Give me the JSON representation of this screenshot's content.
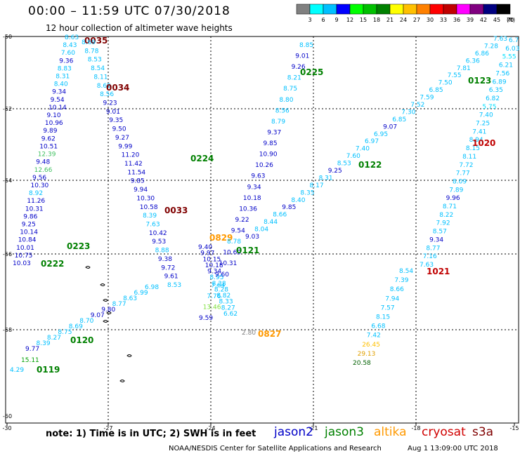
{
  "header": {
    "title": "00:00 – 11:59 UTC 07/30/2018",
    "subtitle": "12 hour collection of altimeter wave heights"
  },
  "colorbar": {
    "colors": [
      "#808080",
      "#00ffff",
      "#00c0ff",
      "#0000ff",
      "#00ff00",
      "#00c000",
      "#008000",
      "#ffff00",
      "#ffc000",
      "#ff8000",
      "#ff0000",
      "#c00000",
      "#ff00ff",
      "#800080",
      "#000080",
      "#000000"
    ],
    "labels": [
      "3",
      "6",
      "9",
      "12",
      "15",
      "18",
      "21",
      "24",
      "27",
      "30",
      "33",
      "36",
      "39",
      "42",
      "45",
      "70"
    ],
    "unit": "(ft)"
  },
  "axes": {
    "lon_labels": [
      "-30",
      "-27",
      "-24",
      "-21",
      "-18",
      "-15"
    ],
    "lat_labels": [
      "-50",
      "-52",
      "-54",
      "-56",
      "-58",
      "-60"
    ]
  },
  "footer": {
    "note": "note:  1) Time is in UTC;  2) SWH is in feet",
    "satellites": [
      {
        "name": "jason2",
        "color": "#0000c8"
      },
      {
        "name": "jason3",
        "color": "#008000"
      },
      {
        "name": "altika",
        "color": "#ff9900"
      },
      {
        "name": "cryosat",
        "color": "#d00000"
      },
      {
        "name": "s3a",
        "color": "#800000"
      }
    ],
    "credit": "NOAA/NESDIS Center for Satellite Applications and Research",
    "timestamp": "Aug  1 13:09:00 UTC 2018"
  },
  "tracks": [
    {
      "id": "0035",
      "label": "0035",
      "color": "#800000",
      "values": [
        "8.63",
        "8.43",
        "7.60",
        "9.36",
        "8.83",
        "8.31",
        "8.40",
        "9.34",
        "9.54",
        "10.14",
        "9.10",
        "10.96",
        "9.89",
        "9.62",
        "10.51",
        "12.39",
        "9.48",
        "12.66",
        "9.56",
        "10.30",
        "8.92",
        "11.26",
        "10.31",
        "9.86",
        "9.25",
        "10.14",
        "10.84",
        "10.01",
        "10.75",
        "10.03"
      ]
    },
    {
      "id": "0034",
      "label": "0034",
      "color": "#800000",
      "values": [
        "8.69",
        "8.78",
        "8.53",
        "8.54",
        "8.11",
        "8.69",
        "8.56",
        "9.23",
        "9.01",
        "9.35",
        "9.50",
        "9.27",
        "9.99",
        "11.20",
        "11.42",
        "11.54",
        "9.85",
        "9.94",
        "10.30",
        "10.58",
        "8.39",
        "7.63",
        "10.42",
        "9.53",
        "8.88",
        "9.38",
        "9.72",
        "9.61",
        "8.53"
      ]
    },
    {
      "id": "0829",
      "label": "0829",
      "color": "#ff9900",
      "values": [
        "9.40",
        "9.97",
        "10.15",
        "10.18",
        "9.34",
        "8.95",
        "8.38",
        "8.28",
        "8.82",
        "8.33",
        "8.27",
        "6.62"
      ]
    },
    {
      "id": "0827",
      "label": "0827",
      "color": "#ff9900",
      "values": [
        "2.80"
      ]
    },
    {
      "id": "0225",
      "label": "0225",
      "color": "#008000",
      "values": [
        "8.85",
        "9.01",
        "9.26",
        "8.21",
        "8.75",
        "8.80",
        "8.56",
        "8.79",
        "9.37",
        "9.85",
        "10.90",
        "10.26",
        "9.63",
        "9.34",
        "10.18",
        "10.36",
        "9.22",
        "9.54",
        "8.78",
        "10.60",
        "10.31",
        "9.60",
        "7.64",
        "7.76",
        "13.46",
        "9.59"
      ]
    },
    {
      "id": "0123",
      "label": "0123",
      "color": "#008000",
      "values": [
        "7.63",
        "7.28",
        "6.86",
        "6.36",
        "7.81",
        "7.55",
        "7.50",
        "6.85",
        "7.59",
        "7.52",
        "7.30",
        "6.85",
        "9.07",
        "6.95",
        "6.97",
        "7.40",
        "7.60",
        "8.53",
        "9.25",
        "8.31",
        "8.17",
        "8.35",
        "8.40",
        "9.85",
        "8.66",
        "8.44",
        "8.04",
        "9.03"
      ]
    },
    {
      "id": "1020",
      "label": "1020",
      "color": "#c00000",
      "values": [
        "6.7",
        "6.03",
        "5.55",
        "6.21",
        "7.56",
        "6.89",
        "6.35",
        "6.82",
        "5.75",
        "7.40",
        "7.25",
        "7.41",
        "8.94",
        "8.15",
        "8.11",
        "7.72",
        "7.77",
        "8.09",
        "7.89",
        "9.96",
        "8.71",
        "8.22",
        "7.92",
        "8.57",
        "9.34",
        "8.77",
        "7.16",
        "7.63"
      ]
    },
    {
      "id": "1021",
      "label": "1021",
      "color": "#c00000",
      "values": [
        "8.54",
        "7.39",
        "8.66",
        "7.94",
        "7.57",
        "8.15",
        "6.68",
        "7.42",
        "26.45",
        "29.13",
        "20.58"
      ]
    },
    {
      "id": "0120",
      "label": "0120",
      "color": "#008000",
      "values": [
        "9.77",
        "8.39",
        "8.27",
        "8.75",
        "8.69",
        "8.70",
        "9.07",
        "9.80",
        "8.77",
        "8.63",
        "6.99",
        "6.98"
      ]
    },
    {
      "id": "0119",
      "label": "0119",
      "color": "#008000",
      "values": [
        "15.11",
        "4.29"
      ]
    },
    {
      "id": "0222",
      "label": "0222",
      "color": "#008000",
      "values": []
    },
    {
      "id": "0223",
      "label": "0223",
      "color": "#008000",
      "values": []
    },
    {
      "id": "0224",
      "label": "0224",
      "color": "#008000",
      "values": []
    },
    {
      "id": "0122",
      "label": "0122",
      "color": "#008000",
      "values": []
    },
    {
      "id": "0121",
      "label": "0121",
      "color": "#008000",
      "values": []
    },
    {
      "id": "0033",
      "label": "0033",
      "color": "#800000",
      "values": []
    }
  ]
}
